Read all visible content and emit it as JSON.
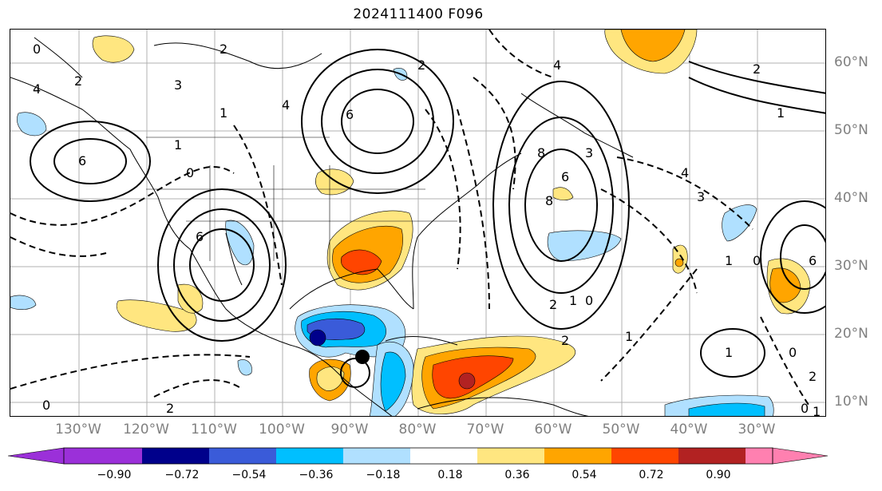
{
  "title": "2024111400 F096",
  "lat_labels": [
    "60°N",
    "50°N",
    "40°N",
    "30°N",
    "20°N",
    "10°N"
  ],
  "lon_labels": [
    "130°W",
    "120°W",
    "110°W",
    "100°W",
    "90°W",
    "80°W",
    "70°W",
    "60°W",
    "50°W",
    "40°W",
    "30°W"
  ],
  "colorbar": {
    "ticks": [
      "−0.90",
      "−0.72",
      "−0.54",
      "−0.36",
      "−0.18",
      "0.18",
      "0.36",
      "0.54",
      "0.72",
      "0.90"
    ],
    "under_color": "#9b30d9",
    "over_color": "#ff80b0",
    "colors": [
      "#00008b",
      "#3a5bd9",
      "#00bfff",
      "#b0e0ff",
      "#ffffff",
      "#ffe680",
      "#ffa500",
      "#ff4500",
      "#b22222"
    ]
  },
  "map": {
    "contour_labels": [
      "0",
      "2",
      "4",
      "6",
      "3",
      "1",
      "6",
      "2",
      "4",
      "8",
      "6",
      "3",
      "2",
      "1",
      "0",
      "1",
      "2",
      "3",
      "4",
      "6",
      "0",
      "1",
      "2",
      "4",
      "6",
      "8",
      "0",
      "2",
      "1",
      "0",
      "1",
      "2",
      "0",
      "1",
      "0",
      "1",
      "2"
    ],
    "colors": {
      "neg1": "#0000a0",
      "neg2": "#3050d0",
      "neg3": "#00bfff",
      "neg4": "#b0e0ff",
      "pos1": "#ffe680",
      "pos2": "#ffa500",
      "pos3": "#ff4500",
      "pos4": "#b22222"
    }
  }
}
